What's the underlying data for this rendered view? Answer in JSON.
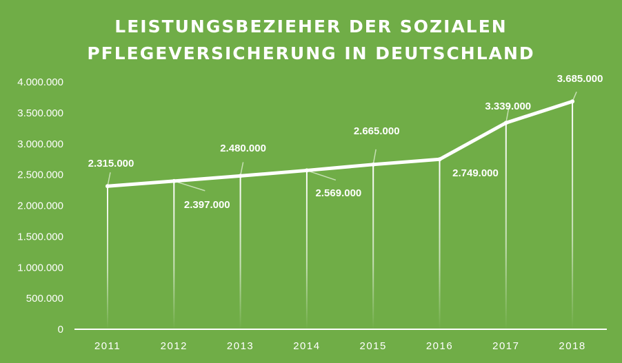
{
  "chart_data": {
    "type": "line",
    "title_lines": [
      "LEISTUNGSBEZIEHER DER SOZIALEN",
      "PFLEGEVERSICHERUNG IN DEUTSCHLAND"
    ],
    "categories": [
      "2011",
      "2012",
      "2013",
      "2014",
      "2015",
      "2016",
      "2017",
      "2018"
    ],
    "values": [
      2315000,
      2397000,
      2480000,
      2569000,
      2665000,
      2749000,
      3339000,
      3685000
    ],
    "data_labels": [
      "2.315.000",
      "2.397.000",
      "2.480.000",
      "2.569.000",
      "2.665.000",
      "2.749.000",
      "3.339.000",
      "3.685.000"
    ],
    "ylim": [
      0,
      4000000
    ],
    "yticks": [
      0,
      500000,
      1000000,
      1500000,
      2000000,
      2500000,
      3000000,
      3500000,
      4000000
    ],
    "ytick_labels": [
      "0",
      "500.000",
      "1.000.000",
      "1.500.000",
      "2.000.000",
      "2.500.000",
      "3.000.000",
      "3.500.000",
      "4.000.000"
    ],
    "xlabel": "",
    "ylabel": "",
    "grid": false,
    "drop_lines": true,
    "colors": {
      "background": "#70AD47",
      "line": "#FFFFFF"
    }
  }
}
